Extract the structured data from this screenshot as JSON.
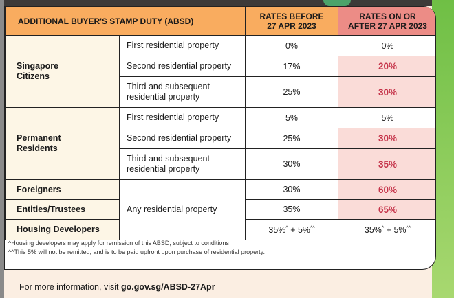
{
  "header": {
    "title": "ADDITIONAL BUYER'S STAMP DUTY (ABSD)",
    "col_before": [
      "RATES BEFORE",
      "27 APR 2023"
    ],
    "col_after": [
      "RATES ON OR",
      "AFTER 27 APR 2023"
    ]
  },
  "groups": {
    "sc": {
      "label": [
        "Singapore",
        "Citizens"
      ],
      "rows": [
        {
          "property": "First residential property",
          "before": "0%",
          "after": "0%"
        },
        {
          "property": "Second residential property",
          "before": "17%",
          "after": "20%"
        },
        {
          "property": [
            "Third and subsequent",
            "residential property"
          ],
          "before": "25%",
          "after": "30%"
        }
      ]
    },
    "pr": {
      "label": [
        "Permanent",
        "Residents"
      ],
      "rows": [
        {
          "property": "First residential property",
          "before": "5%",
          "after": "5%"
        },
        {
          "property": "Second residential property",
          "before": "25%",
          "after": "30%"
        },
        {
          "property": [
            "Third and subsequent",
            "residential property"
          ],
          "before": "30%",
          "after": "35%"
        }
      ]
    },
    "others": {
      "property": "Any residential property",
      "rows": [
        {
          "label": "Foreigners",
          "before": "30%",
          "after": "60%"
        },
        {
          "label": "Entities/Trustees",
          "before": "35%",
          "after": "65%"
        },
        {
          "label": "Housing Developers",
          "before_a": "35%",
          "before_a_sup": "^",
          "before_b": " + 5%",
          "before_b_sup": "^^",
          "after_a": "35%",
          "after_a_sup": "^",
          "after_b": " + 5%",
          "after_b_sup": "^^"
        }
      ]
    }
  },
  "notes": [
    "^Housing developers may apply for remission of this ABSD, subject to conditions",
    "^^This 5% will not be remitted, and is to be paid upfront upon purchase of residential property."
  ],
  "footer": {
    "text": "For more information, visit ",
    "link": "go.gov.sg/ABSD-27Apr"
  },
  "colors": {
    "header": "#f9ac5f",
    "header_after": "#ec8c86",
    "highlight": "#c5344a",
    "after_bg": "#fadcd8",
    "group_bg": "#fdf6e6"
  }
}
